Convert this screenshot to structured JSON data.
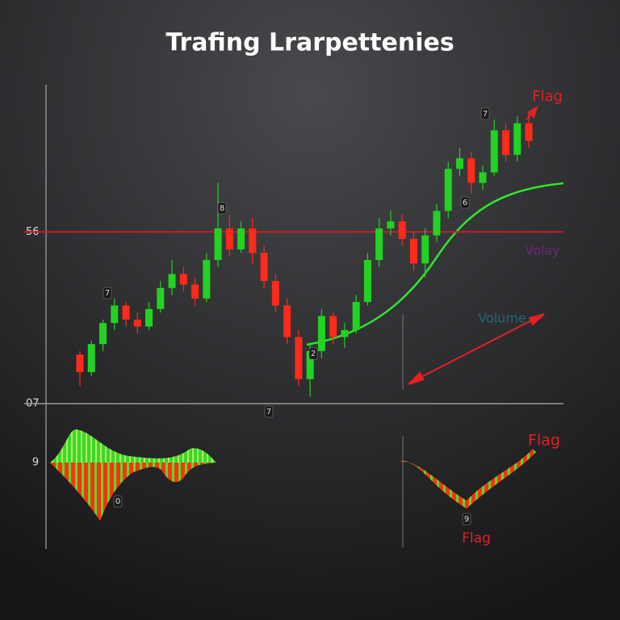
{
  "chart_data": {
    "type": "candlestick",
    "title": "Trafing Lrarpettenies",
    "series": [
      {
        "name": "open",
        "values": [
          21,
          16,
          24,
          30,
          35,
          31,
          29,
          34,
          40,
          44,
          41,
          37,
          48,
          57,
          51,
          57,
          50,
          42,
          35,
          26,
          14,
          22,
          32,
          26,
          28,
          36,
          48,
          57,
          59,
          54,
          47,
          55,
          62,
          74,
          77,
          70,
          73,
          85,
          78,
          87
        ]
      },
      {
        "name": "high",
        "values": [
          22,
          25,
          31,
          37,
          36,
          33,
          36,
          42,
          48,
          46,
          43,
          50,
          70,
          61,
          59,
          60,
          52,
          44,
          37,
          28,
          24,
          34,
          33,
          30,
          38,
          50,
          60,
          62,
          61,
          56,
          57,
          64,
          76,
          80,
          79,
          75,
          88,
          87,
          89,
          90
        ]
      },
      {
        "name": "low",
        "values": [
          12,
          15,
          22,
          28,
          29,
          27,
          28,
          33,
          38,
          39,
          35,
          36,
          46,
          49,
          50,
          47,
          40,
          33,
          24,
          12,
          9,
          20,
          24,
          23,
          27,
          35,
          46,
          55,
          52,
          45,
          43,
          53,
          60,
          72,
          67,
          68,
          72,
          76,
          76,
          80
        ]
      },
      {
        "name": "close",
        "values": [
          16,
          24,
          30,
          35,
          31,
          29,
          34,
          40,
          44,
          41,
          37,
          48,
          57,
          51,
          57,
          50,
          42,
          35,
          26,
          14,
          22,
          32,
          26,
          28,
          36,
          48,
          57,
          59,
          54,
          47,
          55,
          62,
          74,
          77,
          70,
          73,
          85,
          78,
          87,
          82
        ]
      }
    ],
    "up_color": "#22d322",
    "down_color": "#ff2a1a",
    "ylim": [
      7,
      98
    ],
    "yticks": [
      {
        "value": 7,
        "label": "07"
      },
      56
    ],
    "grid_color": "#c0202a",
    "annotations": [
      "Flag",
      "Volay",
      "Volume",
      "Flag",
      "Flag",
      "9",
      "7",
      "8",
      "7",
      "2",
      "7",
      "6",
      "0",
      "9"
    ]
  }
}
